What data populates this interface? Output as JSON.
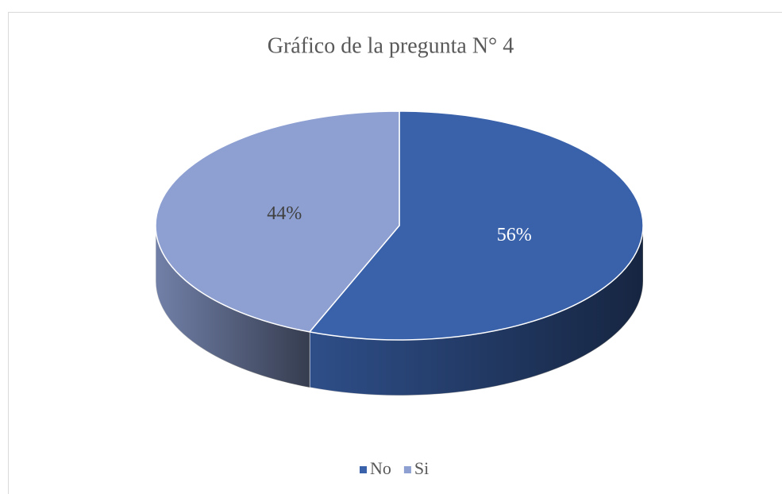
{
  "chart_data": {
    "type": "pie",
    "title": "Gráfico de la pregunta N° 4",
    "categories": [
      "No",
      "Si"
    ],
    "values": [
      56,
      44
    ],
    "value_labels": [
      "56%",
      "44%"
    ],
    "colors": [
      "#3a62ab",
      "#8ea0d2"
    ],
    "legend": "bottom"
  }
}
